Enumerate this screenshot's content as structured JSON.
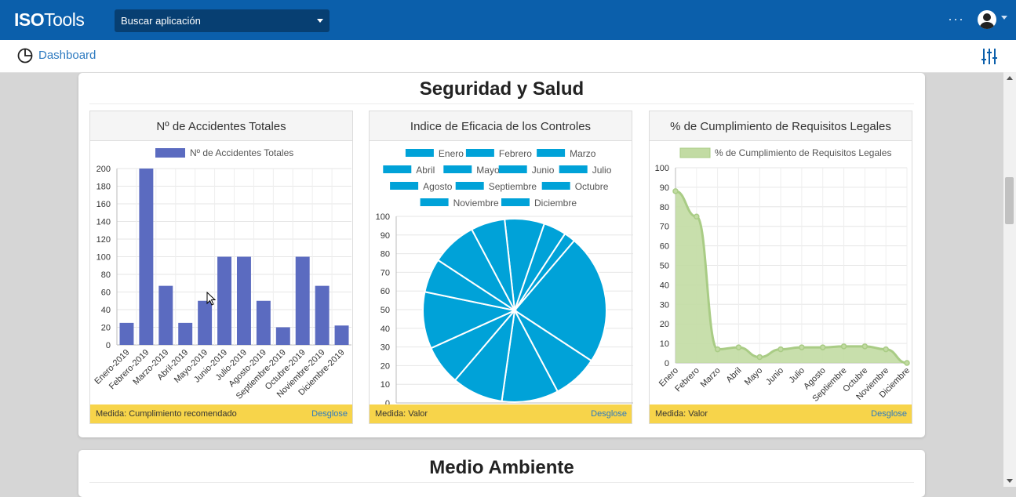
{
  "app": {
    "logo_bold": "ISO",
    "logo_rest": "Tools",
    "search_placeholder": "Buscar aplicación",
    "more_label": "···"
  },
  "nav": {
    "dashboard_label": "Dashboard"
  },
  "colors": {
    "topbar": "#0b5fab",
    "bar": "#5b6bc0",
    "pie": "#00a2d8",
    "area_fill": "#c2dba3",
    "area_line": "#a9cc85",
    "footer": "#f7d44a"
  },
  "sections": [
    {
      "title": "Seguridad y Salud"
    },
    {
      "title": "Medio Ambiente"
    }
  ],
  "cards": [
    {
      "title": "Nº de Accidentes Totales",
      "measure": "Medida: Cumplimiento recomendado",
      "link": "Desglose"
    },
    {
      "title": "Indice de Eficacia de los Controles",
      "measure": "Medida: Valor",
      "link": "Desglose"
    },
    {
      "title": "% de Cumplimiento de Requisitos Legales",
      "measure": "Medida: Valor",
      "link": "Desglose"
    }
  ],
  "chart_data": [
    {
      "type": "bar",
      "legend": "Nº de Accidentes Totales",
      "categories": [
        "Enero-2019",
        "Febrero-2019",
        "Marzo-2019",
        "Abril-2019",
        "Mayo-2019",
        "Junio-2019",
        "Julio-2019",
        "Agosto-2019",
        "Septiembre-2019",
        "Octubre-2019",
        "Noviembre-2019",
        "Diciembre-2019"
      ],
      "values": [
        25,
        200,
        67,
        25,
        50,
        100,
        100,
        50,
        20,
        100,
        67,
        22
      ],
      "ylim": [
        0,
        200
      ],
      "yticks": [
        0,
        20,
        40,
        60,
        80,
        100,
        120,
        140,
        160,
        180,
        200
      ],
      "grid": true,
      "legend_position": "top"
    },
    {
      "type": "pie",
      "legend": [
        "Enero",
        "Febrero",
        "Marzo",
        "Abril",
        "Mayo",
        "Junio",
        "Julio",
        "Agosto",
        "Septiembre",
        "Octubre",
        "Noviembre",
        "Diciembre"
      ],
      "values": [
        7,
        4,
        2,
        23,
        8,
        10,
        9,
        7,
        10,
        6,
        8,
        6
      ],
      "ylim": [
        0,
        100
      ],
      "yticks": [
        0,
        10,
        20,
        30,
        40,
        50,
        60,
        70,
        80,
        90,
        100
      ],
      "grid": true,
      "legend_position": "top"
    },
    {
      "type": "area",
      "legend": "% de Cumplimiento de Requisitos Legales",
      "categories": [
        "Enero",
        "Febrero",
        "Marzo",
        "Abril",
        "Mayo",
        "Junio",
        "Julio",
        "Agosto",
        "Septiembre",
        "Octubre",
        "Noviembre",
        "Diciembre"
      ],
      "values": [
        88,
        75,
        7,
        8,
        3,
        7,
        8,
        8,
        8.5,
        8.5,
        7,
        0
      ],
      "ylim": [
        0,
        100
      ],
      "yticks": [
        0,
        10,
        20,
        30,
        40,
        50,
        60,
        70,
        80,
        90,
        100
      ],
      "grid": true,
      "legend_position": "top"
    }
  ]
}
